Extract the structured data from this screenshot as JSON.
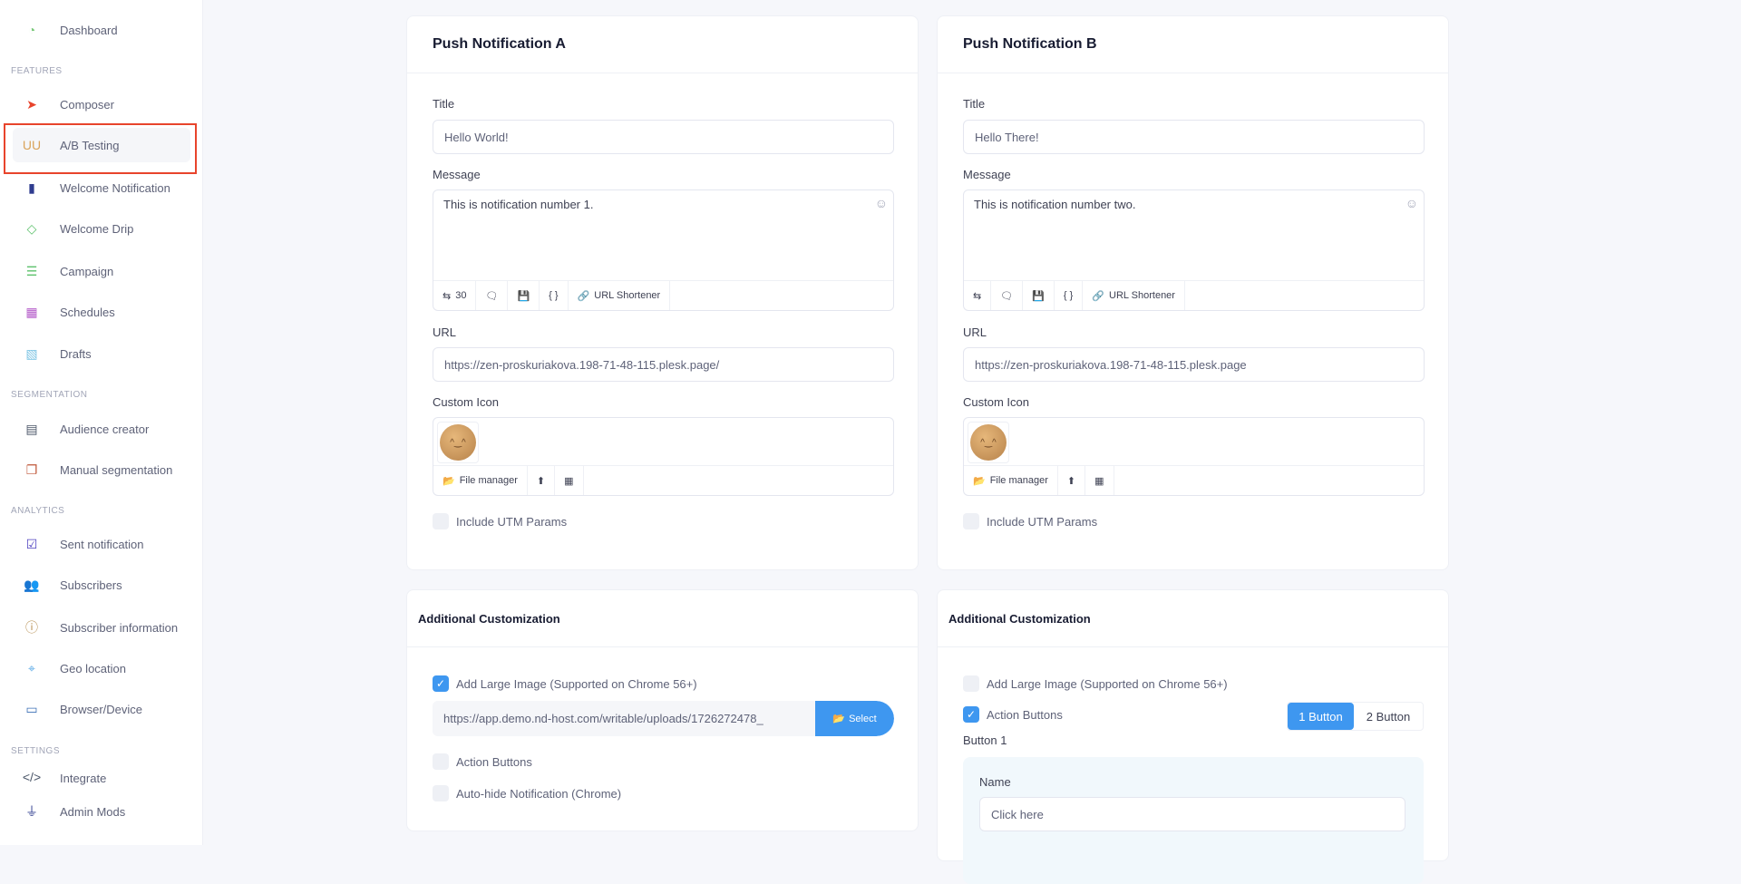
{
  "sidebar": {
    "items": [
      {
        "label": "Dashboard",
        "icon": "gauge-icon"
      },
      {
        "label": "Composer",
        "icon": "paper-plane-icon"
      },
      {
        "label": "A/B Testing",
        "icon": "ab-test-tubes-icon"
      },
      {
        "label": "Welcome Notification",
        "icon": "door-icon"
      },
      {
        "label": "Welcome Drip",
        "icon": "drip-icon"
      },
      {
        "label": "Campaign",
        "icon": "campaign-lines-icon"
      },
      {
        "label": "Schedules",
        "icon": "calendar-icon"
      },
      {
        "label": "Drafts",
        "icon": "draft-icon"
      },
      {
        "label": "Audience creator",
        "icon": "audience-icon"
      },
      {
        "label": "Manual segmentation",
        "icon": "segment-icon"
      },
      {
        "label": "Sent notification",
        "icon": "checklist-icon"
      },
      {
        "label": "Subscribers",
        "icon": "users-icon"
      },
      {
        "label": "Subscriber information",
        "icon": "info-icon"
      },
      {
        "label": "Geo location",
        "icon": "map-icon"
      },
      {
        "label": "Browser/Device",
        "icon": "browser-icon"
      },
      {
        "label": "Integrate",
        "icon": "code-icon"
      },
      {
        "label": "Admin Mods",
        "icon": "plug-icon"
      }
    ],
    "sections": [
      "FEATURES",
      "SEGMENTATION",
      "ANALYTICS",
      "SETTINGS"
    ]
  },
  "labels": {
    "title": "Title",
    "message": "Message",
    "url": "URL",
    "custom_icon": "Custom Icon",
    "utm": "Include UTM Params",
    "file_manager": "File manager",
    "url_shortener": "URL Shortener",
    "additional": "Additional Customization",
    "large_image": "Add Large Image (Supported on Chrome 56+)",
    "action_buttons": "Action Buttons",
    "auto_hide": "Auto-hide Notification (Chrome)",
    "select": "Select",
    "one_button": "1 Button",
    "two_button": "2 Button",
    "button1": "Button 1",
    "name": "Name"
  },
  "a": {
    "header": "Push Notification A",
    "title": "Hello World!",
    "message": "This is notification number 1.",
    "char_count": "30",
    "url": "https://zen-proskuriakova.198-71-48-115.plesk.page/",
    "large_image_checked": true,
    "large_image_url": "https://app.demo.nd-host.com/writable/uploads/1726272478_",
    "action_buttons_checked": false,
    "auto_hide_checked": false,
    "utm_checked": false
  },
  "b": {
    "header": "Push Notification B",
    "title": "Hello There!",
    "message": "This is notification number two.",
    "url": "https://zen-proskuriakova.198-71-48-115.plesk.page",
    "large_image_checked": false,
    "action_buttons_checked": true,
    "buttons_selected": "1 Button",
    "button1_name": "Click here",
    "utm_checked": false
  },
  "colors": {
    "accent": "#3e97f0",
    "highlight": "#e8442c"
  }
}
